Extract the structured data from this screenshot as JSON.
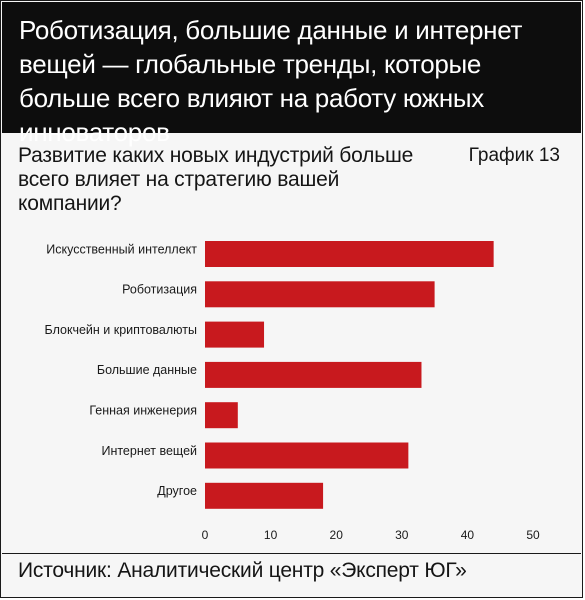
{
  "header": {
    "title": "Роботизация, большие данные и интернет вещей — глобальные тренды, которые больше всего влияют на работу южных инноваторов"
  },
  "question": "Развитие каких новых индустрий больше всего влияет на стратегию вашей компании?",
  "chart_number": "График 13",
  "source": "Источник: Аналитический центр «Эксперт ЮГ»",
  "colors": {
    "bar": "#c8191e",
    "background": "#f6f6f6",
    "header": "#0d0d0d"
  },
  "chart_data": {
    "type": "bar",
    "orientation": "horizontal",
    "title": "Развитие каких новых индустрий больше всего влияет на стратегию вашей компании?",
    "categories": [
      "Искусственный интеллект",
      "Роботизация",
      "Блокчейн и криптовалюты",
      "Большие данные",
      "Генная инженерия",
      "Интернет вещей",
      "Другое"
    ],
    "values": [
      44,
      35,
      9,
      33,
      5,
      31,
      18
    ],
    "xlim": [
      0,
      50
    ],
    "xticks": [
      0,
      10,
      20,
      30,
      40,
      50
    ],
    "grid": false,
    "legend": "none"
  }
}
